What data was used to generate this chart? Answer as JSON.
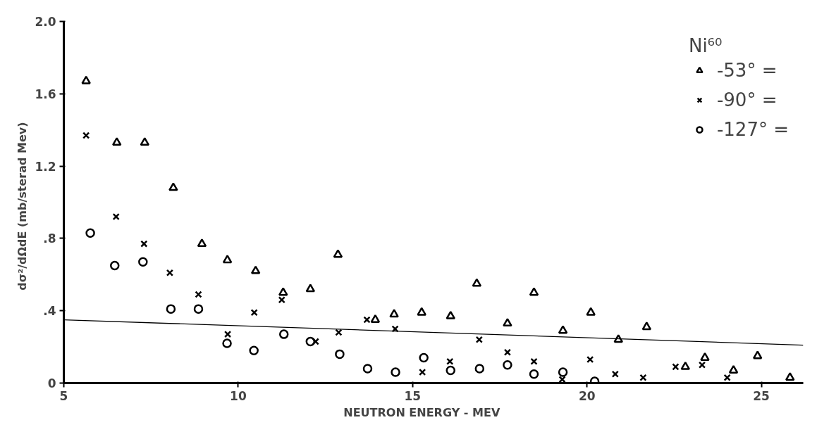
{
  "chart_data": {
    "type": "scatter",
    "xlabel": "NEUTRON   ENERGY   -   MEV",
    "ylabel": "dσ²/dΩdE   (mb/sterad Mev)",
    "legend_title": "Ni⁶⁰",
    "xlim": [
      5,
      26.2
    ],
    "ylim": [
      0,
      2.0
    ],
    "xticks": [
      5,
      10,
      15,
      20,
      25
    ],
    "yticks": [
      {
        "value": 0,
        "label": "0"
      },
      {
        "value": 0.4,
        "label": ".4"
      },
      {
        "value": 0.8,
        "label": ".8"
      },
      {
        "value": 1.2,
        "label": "1.2"
      },
      {
        "value": 1.6,
        "label": "1.6"
      },
      {
        "value": 2.0,
        "label": "2.0"
      }
    ],
    "grid": false,
    "legend": "top right",
    "series": [
      {
        "name": "-53° =",
        "color": "#000000",
        "marker": "triangle",
        "x": [
          5.64,
          6.52,
          7.32,
          8.14,
          8.96,
          9.69,
          10.5,
          11.29,
          12.07,
          12.86,
          13.93,
          14.47,
          15.26,
          16.09,
          16.84,
          17.72,
          18.48,
          19.31,
          20.11,
          20.9,
          21.71,
          22.82,
          23.38,
          24.2,
          24.89,
          25.82
        ],
        "values": [
          1.67,
          1.33,
          1.33,
          1.08,
          0.77,
          0.68,
          0.62,
          0.5,
          0.52,
          0.71,
          0.35,
          0.38,
          0.39,
          0.37,
          0.55,
          0.33,
          0.5,
          0.29,
          0.39,
          0.24,
          0.31,
          0.09,
          0.14,
          0.07,
          0.15,
          0.03
        ]
      },
      {
        "name": "-90° =",
        "color": "#000000",
        "marker": "cross",
        "x": [
          5.64,
          6.5,
          7.3,
          8.04,
          8.86,
          9.7,
          10.46,
          11.25,
          12.22,
          12.88,
          13.69,
          14.5,
          15.28,
          16.07,
          16.91,
          17.72,
          18.48,
          19.29,
          20.09,
          20.81,
          21.61,
          22.54,
          23.3,
          24.02
        ],
        "values": [
          1.37,
          0.92,
          0.77,
          0.61,
          0.49,
          0.27,
          0.39,
          0.46,
          0.23,
          0.28,
          0.35,
          0.3,
          0.06,
          0.12,
          0.24,
          0.17,
          0.12,
          0.02,
          0.13,
          0.05,
          0.03,
          0.09,
          0.1,
          0.03
        ]
      },
      {
        "name": "-127° =",
        "color": "#000000",
        "marker": "circle",
        "x": [
          5.76,
          6.46,
          7.27,
          8.07,
          8.86,
          9.68,
          10.45,
          11.31,
          12.07,
          12.91,
          13.71,
          14.51,
          15.32,
          16.09,
          16.92,
          17.72,
          18.48,
          19.31,
          20.22
        ],
        "values": [
          0.83,
          0.65,
          0.67,
          0.41,
          0.41,
          0.22,
          0.18,
          0.27,
          0.23,
          0.16,
          0.08,
          0.06,
          0.14,
          0.07,
          0.08,
          0.1,
          0.05,
          0.06,
          0.01
        ]
      },
      {
        "type": "line",
        "color": "#000000",
        "line_style": "solid",
        "x": [
          5,
          26.2
        ],
        "values": [
          0.35,
          0.21
        ]
      }
    ]
  }
}
